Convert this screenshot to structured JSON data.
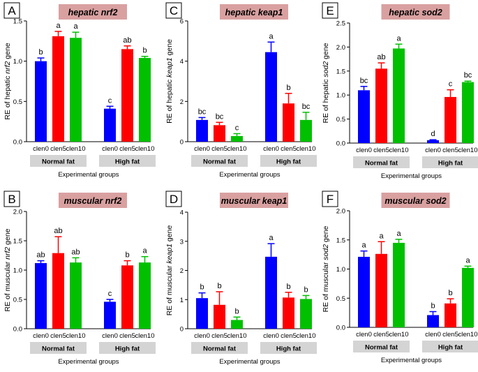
{
  "colors": {
    "clen0": "#0000ff",
    "clen5": "#ff0000",
    "clen10": "#00c000",
    "error_bar": "#000000",
    "title_bg": "#d9a0a0",
    "group_box": "#d4d4d4",
    "letter_box_border": "#000000"
  },
  "chart_data": [
    {
      "panel": "A",
      "type": "bar",
      "title": "hepatic nrf2",
      "ylabel_parts": [
        "RE of hepatic ",
        "nrf2",
        " gene"
      ],
      "xlabel": "Experimental groups",
      "ylim": [
        0,
        1.5
      ],
      "yticks": [
        "0.0",
        "0.5",
        "1.0",
        "1.5"
      ],
      "groups": [
        "Normal fat",
        "High fat"
      ],
      "categories": [
        "clen0",
        "clen5",
        "clen10"
      ],
      "series": [
        {
          "group": "Normal fat",
          "values": [
            1.0,
            1.31,
            1.29
          ],
          "errors": [
            0.04,
            0.06,
            0.07
          ],
          "letters": [
            "b",
            "a",
            "a"
          ]
        },
        {
          "group": "High fat",
          "values": [
            0.41,
            1.15,
            1.04
          ],
          "errors": [
            0.03,
            0.04,
            0.02
          ],
          "letters": [
            "c",
            "ab",
            "b"
          ]
        }
      ]
    },
    {
      "panel": "C",
      "type": "bar",
      "title": "hepatic keap1",
      "ylabel_parts": [
        "RE of hepatic ",
        "keap1",
        " gene"
      ],
      "xlabel": "Experimental groups",
      "ylim": [
        0,
        6
      ],
      "yticks": [
        "0",
        "2",
        "4",
        "6"
      ],
      "groups": [
        "Normal fat",
        "High fat"
      ],
      "categories": [
        "clen0",
        "clen5",
        "clen10"
      ],
      "series": [
        {
          "group": "Normal fat",
          "values": [
            1.08,
            0.82,
            0.28
          ],
          "errors": [
            0.12,
            0.14,
            0.12
          ],
          "letters": [
            "bc",
            "bc",
            "c"
          ]
        },
        {
          "group": "High fat",
          "values": [
            4.45,
            1.9,
            1.08
          ],
          "errors": [
            0.5,
            0.5,
            0.38
          ],
          "letters": [
            "a",
            "b",
            "bc"
          ]
        }
      ]
    },
    {
      "panel": "E",
      "type": "bar",
      "title": "hepatic sod2",
      "ylabel_parts": [
        "RE of hepatic ",
        "sod2",
        " gene"
      ],
      "xlabel": "Experimental groups",
      "ylim": [
        0,
        2.5
      ],
      "yticks": [
        "0.0",
        "0.5",
        "1.0",
        "1.5",
        "2.0",
        "2.5"
      ],
      "groups": [
        "Normal fat",
        "High fat"
      ],
      "categories": [
        "clen0",
        "clen5",
        "clen10"
      ],
      "series": [
        {
          "group": "Normal fat",
          "values": [
            1.1,
            1.55,
            1.97
          ],
          "errors": [
            0.08,
            0.12,
            0.09
          ],
          "letters": [
            "bc",
            "ab",
            "a"
          ]
        },
        {
          "group": "High fat",
          "values": [
            0.06,
            0.96,
            1.27
          ],
          "errors": [
            0.01,
            0.15,
            0.02
          ],
          "letters": [
            "d",
            "c",
            "bc"
          ]
        }
      ]
    },
    {
      "panel": "B",
      "type": "bar",
      "title": "muscular nrf2",
      "ylabel_parts": [
        "RE of muscular ",
        "nrf2",
        " gene"
      ],
      "xlabel": "Experimental groups",
      "ylim": [
        0,
        2.0
      ],
      "yticks": [
        "0.0",
        "0.5",
        "1.0",
        "1.5",
        "2.0"
      ],
      "groups": [
        "Normal fat",
        "High fat"
      ],
      "categories": [
        "clen0",
        "clen5",
        "clen10"
      ],
      "series": [
        {
          "group": "Normal fat",
          "values": [
            1.12,
            1.29,
            1.13
          ],
          "errors": [
            0.04,
            0.28,
            0.08
          ],
          "letters": [
            "ab",
            "ab",
            "ab"
          ]
        },
        {
          "group": "High fat",
          "values": [
            0.46,
            1.08,
            1.13
          ],
          "errors": [
            0.04,
            0.08,
            0.1
          ],
          "letters": [
            "c",
            "b",
            "a"
          ]
        }
      ]
    },
    {
      "panel": "D",
      "type": "bar",
      "title": "muscular keap1",
      "ylabel_parts": [
        "RE of muscular ",
        "keap1",
        " gene"
      ],
      "xlabel": "Experimental groups",
      "ylim": [
        0,
        4
      ],
      "yticks": [
        "0",
        "1",
        "2",
        "3",
        "4"
      ],
      "groups": [
        "Normal fat",
        "High fat"
      ],
      "categories": [
        "clen0",
        "clen5",
        "clen10"
      ],
      "series": [
        {
          "group": "Normal fat",
          "values": [
            1.05,
            0.82,
            0.3
          ],
          "errors": [
            0.18,
            0.45,
            0.1
          ],
          "letters": [
            "b",
            "b",
            "b"
          ]
        },
        {
          "group": "High fat",
          "values": [
            2.47,
            1.07,
            1.02
          ],
          "errors": [
            0.45,
            0.18,
            0.12
          ],
          "letters": [
            "a",
            "b",
            "b"
          ]
        }
      ]
    },
    {
      "panel": "F",
      "type": "bar",
      "title": "muscular sod2",
      "ylabel_parts": [
        "RE of muscular ",
        "sod2",
        " gene"
      ],
      "xlabel": "Experimental groups",
      "ylim": [
        0,
        2.0
      ],
      "yticks": [
        "0.0",
        "0.5",
        "1.0",
        "1.5",
        "2.0"
      ],
      "groups": [
        "Normal fat",
        "High fat"
      ],
      "categories": [
        "clen0",
        "clen5",
        "clen10"
      ],
      "series": [
        {
          "group": "Normal fat",
          "values": [
            1.21,
            1.26,
            1.45
          ],
          "errors": [
            0.1,
            0.21,
            0.06
          ],
          "letters": [
            "a",
            "a",
            "a"
          ]
        },
        {
          "group": "High fat",
          "values": [
            0.21,
            0.41,
            1.02
          ],
          "errors": [
            0.06,
            0.08,
            0.03
          ],
          "letters": [
            "b",
            "b",
            "a"
          ]
        }
      ]
    }
  ]
}
